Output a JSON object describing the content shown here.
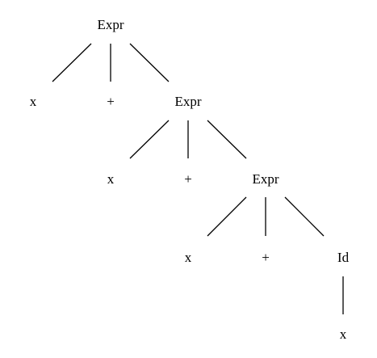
{
  "tree": {
    "root": {
      "label": "Expr",
      "children": [
        {
          "label": "x"
        },
        {
          "label": "+"
        },
        {
          "label": "Expr",
          "children": [
            {
              "label": "x"
            },
            {
              "label": "+"
            },
            {
              "label": "Expr",
              "children": [
                {
                  "label": "x"
                },
                {
                  "label": "+"
                },
                {
                  "label": "Id",
                  "children": [
                    {
                      "label": "x"
                    }
                  ]
                }
              ]
            }
          ]
        }
      ]
    }
  },
  "colors": {
    "ink": "#000000",
    "background": "#ffffff"
  }
}
